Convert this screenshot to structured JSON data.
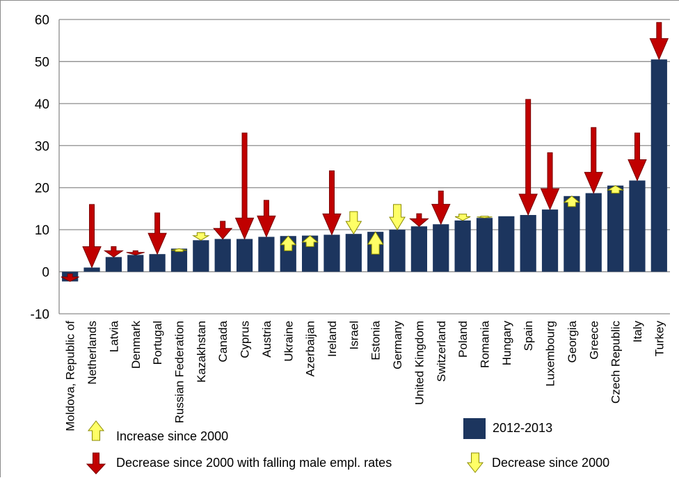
{
  "colors": {
    "bar": "#1c355e",
    "decrease_falling_male": "#c00000",
    "arrow_yellow": "#ffff66",
    "gridline": "#8c8c8c"
  },
  "legend": {
    "increase": "Increase since 2000",
    "decrease_falling_male": "Decrease since 2000 with falling male empl. rates",
    "decrease": "Decrease since 2000",
    "bar_series": "2012-2013"
  },
  "chart_data": {
    "type": "bar",
    "ylim": [
      -10,
      60
    ],
    "yticks": [
      "-10",
      "0",
      "10",
      "20",
      "30",
      "40",
      "50",
      "60"
    ],
    "grid": true,
    "legend_position": "bottom",
    "categories": [
      "Moldova, Republic of",
      "Netherlands",
      "Latvia",
      "Denmark",
      "Portugal",
      "Russian Federation",
      "Kazakhstan",
      "Canada",
      "Cyprus",
      "Austria",
      "Ukraine",
      "Azerbaijan",
      "Ireland",
      "Israel",
      "Estonia",
      "Germany",
      "United Kingdom",
      "Switzerland",
      "Poland",
      "Romania",
      "Hungary",
      "Spain",
      "Luxembourg",
      "Georgia",
      "Greece",
      "Czech Republic",
      "Italy",
      "Turkey"
    ],
    "series": [
      {
        "name": "2012-2013",
        "values": [
          -2.3,
          1.0,
          3.5,
          4.0,
          4.2,
          5.5,
          7.5,
          7.8,
          7.8,
          8.3,
          8.5,
          8.6,
          8.8,
          9.0,
          9.5,
          10.0,
          10.8,
          11.3,
          12.2,
          12.8,
          13.2,
          13.5,
          14.8,
          18.0,
          18.7,
          20.5,
          21.7,
          50.5
        ]
      }
    ],
    "changes_since_2000": [
      {
        "from": -0.5,
        "to": -2.3,
        "type": "decrease_falling_male"
      },
      {
        "from": 16.0,
        "to": 1.0,
        "type": "decrease_falling_male"
      },
      {
        "from": 6.0,
        "to": 3.5,
        "type": "decrease_falling_male"
      },
      {
        "from": 5.0,
        "to": 4.0,
        "type": "decrease_falling_male"
      },
      {
        "from": 14.0,
        "to": 4.2,
        "type": "decrease_falling_male"
      },
      {
        "from": 4.8,
        "to": 5.5,
        "type": "increase"
      },
      {
        "from": 9.3,
        "to": 7.5,
        "type": "decrease"
      },
      {
        "from": 12.0,
        "to": 7.8,
        "type": "decrease_falling_male"
      },
      {
        "from": 33.0,
        "to": 7.8,
        "type": "decrease_falling_male"
      },
      {
        "from": 17.0,
        "to": 8.3,
        "type": "decrease_falling_male"
      },
      {
        "from": 5.0,
        "to": 8.5,
        "type": "increase"
      },
      {
        "from": 6.0,
        "to": 8.6,
        "type": "increase"
      },
      {
        "from": 24.0,
        "to": 8.8,
        "type": "decrease_falling_male"
      },
      {
        "from": 14.3,
        "to": 9.0,
        "type": "decrease"
      },
      {
        "from": 4.2,
        "to": 9.5,
        "type": "increase"
      },
      {
        "from": 16.0,
        "to": 10.0,
        "type": "decrease"
      },
      {
        "from": 13.8,
        "to": 10.8,
        "type": "decrease_falling_male"
      },
      {
        "from": 19.2,
        "to": 11.3,
        "type": "decrease_falling_male"
      },
      {
        "from": 13.7,
        "to": 12.2,
        "type": "decrease"
      },
      {
        "from": 13.2,
        "to": 12.8,
        "type": "decrease"
      },
      null,
      {
        "from": 41.0,
        "to": 13.5,
        "type": "decrease_falling_male"
      },
      {
        "from": 28.3,
        "to": 14.8,
        "type": "decrease_falling_male"
      },
      {
        "from": 15.5,
        "to": 18.0,
        "type": "increase"
      },
      {
        "from": 34.3,
        "to": 18.7,
        "type": "decrease_falling_male"
      },
      {
        "from": 18.7,
        "to": 20.5,
        "type": "increase"
      },
      {
        "from": 33.0,
        "to": 21.7,
        "type": "decrease_falling_male"
      },
      {
        "from": 59.3,
        "to": 50.5,
        "type": "decrease_falling_male"
      }
    ]
  }
}
